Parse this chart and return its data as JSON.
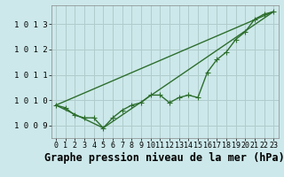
{
  "background_color": "#cce8ea",
  "plot_bg_color": "#cce8ea",
  "grid_color": "#b0cccc",
  "line_color": "#2d6e2d",
  "title": "Graphe pression niveau de la mer (hPa)",
  "xlim": [
    -0.5,
    23.5
  ],
  "ylim": [
    1008.5,
    1013.75
  ],
  "yticks": [
    1009,
    1010,
    1011,
    1012,
    1013
  ],
  "xticks": [
    0,
    1,
    2,
    3,
    4,
    5,
    6,
    7,
    8,
    9,
    10,
    11,
    12,
    13,
    14,
    15,
    16,
    17,
    18,
    19,
    20,
    21,
    22,
    23
  ],
  "line1_x": [
    0,
    1,
    2,
    3,
    4,
    5,
    6,
    7,
    8,
    9,
    10,
    11,
    12,
    13,
    14,
    15,
    16,
    17,
    18,
    19,
    20,
    21,
    22,
    23
  ],
  "line1_y": [
    1009.8,
    1009.7,
    1009.4,
    1009.3,
    1009.3,
    1008.9,
    1009.3,
    1009.6,
    1009.8,
    1009.9,
    1010.2,
    1010.2,
    1009.9,
    1010.1,
    1010.2,
    1010.1,
    1011.1,
    1011.6,
    1011.9,
    1012.4,
    1012.7,
    1013.2,
    1013.4,
    1013.5
  ],
  "line2_x": [
    0,
    23
  ],
  "line2_y": [
    1009.8,
    1013.5
  ],
  "line3_x": [
    0,
    5,
    23
  ],
  "line3_y": [
    1009.8,
    1008.9,
    1013.5
  ],
  "markersize": 2.8,
  "linewidth": 1.0,
  "title_fontsize": 8.5,
  "tick_fontsize": 6.0
}
